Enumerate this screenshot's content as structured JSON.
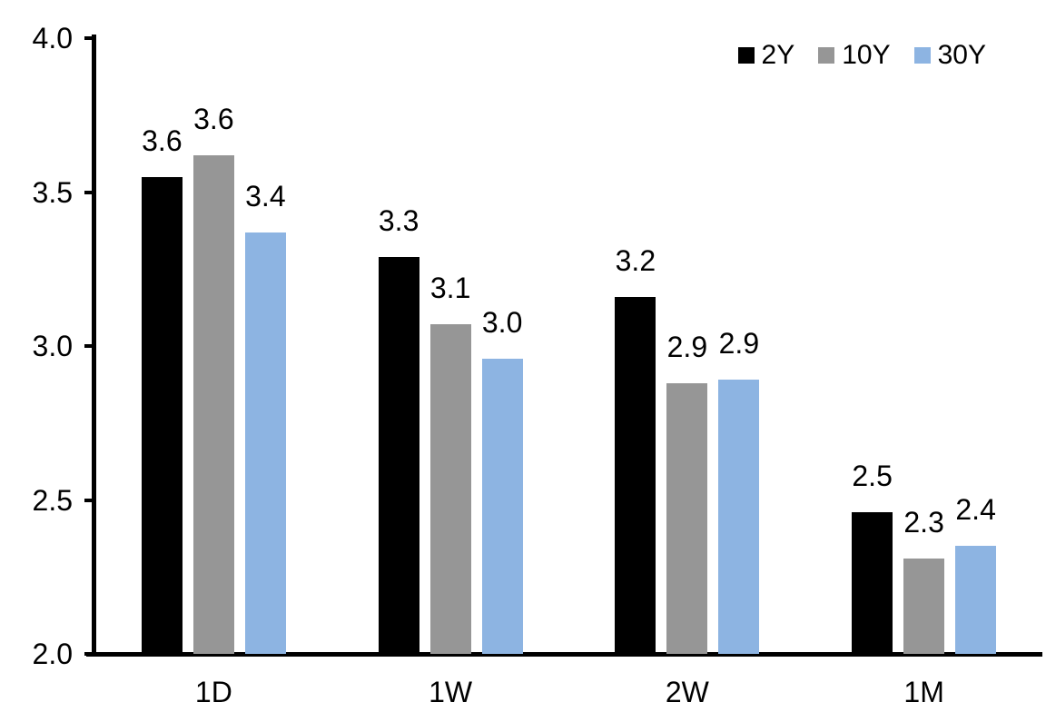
{
  "chart_data": {
    "type": "bar",
    "title": "",
    "xlabel": "",
    "ylabel": "",
    "categories": [
      "1D",
      "1W",
      "2W",
      "1M"
    ],
    "series": [
      {
        "name": "2Y",
        "color": "#000000",
        "values": [
          3.6,
          3.3,
          3.2,
          2.5
        ],
        "labels": [
          "3.6",
          "3.3",
          "3.2",
          "2.5"
        ],
        "bar_heights_precise": [
          3.55,
          3.29,
          3.16,
          2.46
        ]
      },
      {
        "name": "10Y",
        "color": "#969696",
        "values": [
          3.6,
          3.1,
          2.9,
          2.3
        ],
        "labels": [
          "3.6",
          "3.1",
          "2.9",
          "2.3"
        ],
        "bar_heights_precise": [
          3.62,
          3.07,
          2.88,
          2.31
        ]
      },
      {
        "name": "30Y",
        "color": "#8DB4E2",
        "values": [
          3.4,
          3.0,
          2.9,
          2.4
        ],
        "labels": [
          "3.4",
          "3.0",
          "2.9",
          "2.4"
        ],
        "bar_heights_precise": [
          3.37,
          2.96,
          2.89,
          2.35
        ]
      }
    ],
    "y_axis": {
      "min": 2.0,
      "max": 4.0,
      "tick_values": [
        2.0,
        2.5,
        3.0,
        3.5,
        4.0
      ],
      "tick_labels": [
        "2.0",
        "2.5",
        "3.0",
        "3.5",
        "4.0"
      ]
    },
    "legend_position": "top-right",
    "grid": false,
    "data_labels_shown": true,
    "background_color": "#FFFFFF",
    "axis_color": "#000000"
  }
}
